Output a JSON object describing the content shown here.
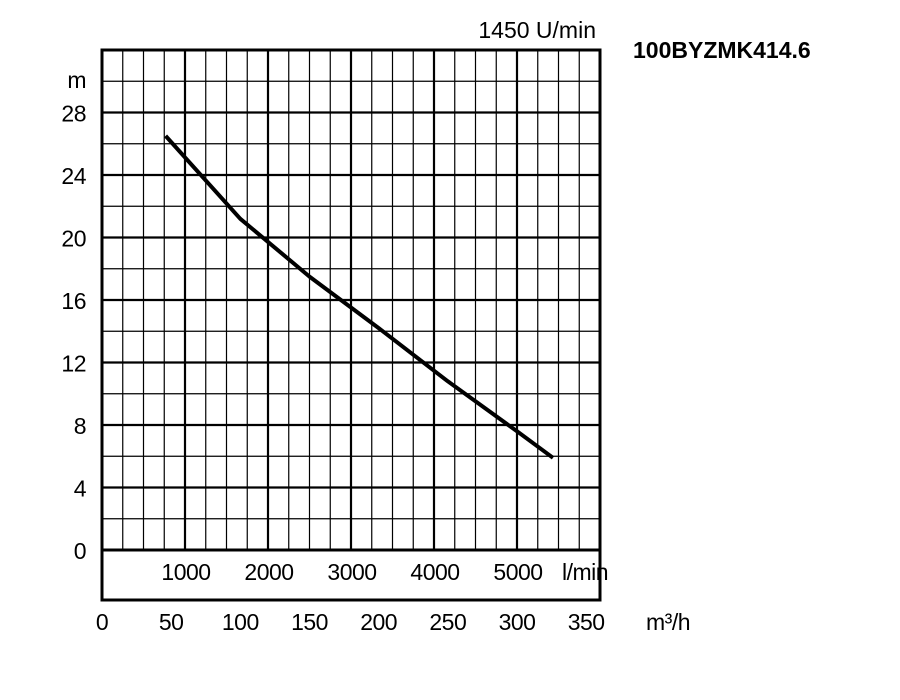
{
  "chart_data": {
    "type": "line",
    "title": "100BYZMK414.6",
    "speed_label": "1450 U/min",
    "ylabel": "m",
    "ylim": [
      0,
      32
    ],
    "yticks": [
      0,
      4,
      8,
      12,
      16,
      20,
      24,
      28
    ],
    "x_lmin_ticks": [
      "1000",
      "2000",
      "3000",
      "4000",
      "5000"
    ],
    "x_lmin_unit": "l/min",
    "xlim_m3h": [
      0,
      360
    ],
    "x_m3h_ticks": [
      0,
      50,
      100,
      150,
      200,
      250,
      300,
      350
    ],
    "x_m3h_unit": "m³/h",
    "grid": true,
    "series": [
      {
        "x_unit": "m³/h",
        "y_unit": "m",
        "x": [
          46,
          100,
          150,
          200,
          250,
          300,
          326
        ],
        "y": [
          26.5,
          21.2,
          17.5,
          14.2,
          10.8,
          7.6,
          5.9
        ]
      }
    ],
    "line_color": "#000000"
  }
}
